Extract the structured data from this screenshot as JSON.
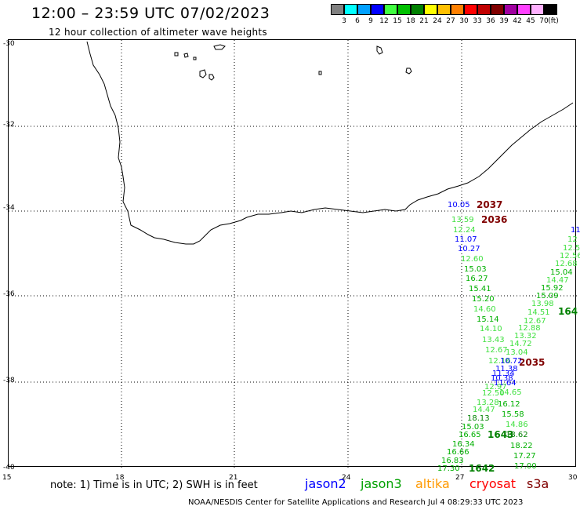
{
  "header": {
    "title": "12:00 – 23:59 UTC 07/02/2023",
    "subtitle": "12 hour collection of altimeter wave heights"
  },
  "legend": {
    "unit": "(ft)",
    "cells": [
      {
        "color": "#808080",
        "label": "3"
      },
      {
        "color": "#00ffff",
        "label": "6"
      },
      {
        "color": "#00a0ff",
        "label": "9"
      },
      {
        "color": "#0000ff",
        "label": "12"
      },
      {
        "color": "#40ff40",
        "label": "15"
      },
      {
        "color": "#00c000",
        "label": "18"
      },
      {
        "color": "#008000",
        "label": "21"
      },
      {
        "color": "#ffff00",
        "label": "24"
      },
      {
        "color": "#ffc000",
        "label": "27"
      },
      {
        "color": "#ff8000",
        "label": "30"
      },
      {
        "color": "#ff0000",
        "label": "33"
      },
      {
        "color": "#c00000",
        "label": "36"
      },
      {
        "color": "#800000",
        "label": "39"
      },
      {
        "color": "#a000a0",
        "label": "42"
      },
      {
        "color": "#ff40ff",
        "label": "45"
      },
      {
        "color": "#ffb0ff",
        "label": "70"
      },
      {
        "color": "#000000",
        "label": ""
      }
    ]
  },
  "axes": {
    "lat_labels": [
      "-30",
      "-32",
      "-34",
      "-36",
      "-38",
      "-40"
    ],
    "lon_labels": [
      "15",
      "18",
      "21",
      "24",
      "27",
      "30"
    ]
  },
  "observations": [
    {
      "text": "10.05",
      "c": "#0000ff"
    },
    {
      "text": "2037",
      "c": "#800000",
      "big": true
    },
    {
      "text": "13.59",
      "c": "#40e040"
    },
    {
      "text": "2036",
      "c": "#800000",
      "big": true
    },
    {
      "text": "12.24",
      "c": "#40e040"
    },
    {
      "text": "11.07",
      "c": "#0000ff"
    },
    {
      "text": "10.27",
      "c": "#0000ff"
    },
    {
      "text": "12.60",
      "c": "#40e040"
    },
    {
      "text": "15.03",
      "c": "#00b000"
    },
    {
      "text": "16.27",
      "c": "#00b000"
    },
    {
      "text": "15.41",
      "c": "#00b000"
    },
    {
      "text": "15.20",
      "c": "#00b000"
    },
    {
      "text": "14.60",
      "c": "#40e040"
    },
    {
      "text": "15.14",
      "c": "#00b000"
    },
    {
      "text": "14.10",
      "c": "#40e040"
    },
    {
      "text": "13.43",
      "c": "#40e040"
    },
    {
      "text": "12.67",
      "c": "#40e040"
    },
    {
      "text": "12.16",
      "c": "#40e040"
    },
    {
      "text": "10.72",
      "c": "#0000ff"
    },
    {
      "text": "11.38",
      "c": "#0000ff"
    },
    {
      "text": "11.34",
      "c": "#0000ff"
    },
    {
      "text": "10.38",
      "c": "#0000ff"
    },
    {
      "text": "11.64",
      "c": "#0000ff"
    },
    {
      "text": "12.97",
      "c": "#40e040"
    },
    {
      "text": "12.50",
      "c": "#40e040"
    },
    {
      "text": "13.28",
      "c": "#40e040"
    },
    {
      "text": "14.47",
      "c": "#40e040"
    },
    {
      "text": "18.13",
      "c": "#008000"
    },
    {
      "text": "15.03",
      "c": "#00b000"
    },
    {
      "text": "16.65",
      "c": "#00b000"
    },
    {
      "text": "16.34",
      "c": "#00b000"
    },
    {
      "text": "16.66",
      "c": "#00b000"
    },
    {
      "text": "16.83",
      "c": "#00b000"
    },
    {
      "text": "17.30",
      "c": "#00b000"
    },
    {
      "text": "1642",
      "c": "#008000",
      "big": true
    },
    {
      "text": "1643",
      "c": "#008000",
      "big": true
    },
    {
      "text": "2035",
      "c": "#800000",
      "big": true
    },
    {
      "text": "11",
      "c": "#0000ff"
    },
    {
      "text": "12",
      "c": "#40e040"
    },
    {
      "text": "12.5",
      "c": "#40e040"
    },
    {
      "text": "12.56",
      "c": "#40e040"
    },
    {
      "text": "12.68",
      "c": "#40e040"
    },
    {
      "text": "15.04",
      "c": "#00b000"
    },
    {
      "text": "14.47",
      "c": "#40e040"
    },
    {
      "text": "15.92",
      "c": "#00b000"
    },
    {
      "text": "15.09",
      "c": "#00b000"
    },
    {
      "text": "13.98",
      "c": "#40e040"
    },
    {
      "text": "14.51",
      "c": "#40e040"
    },
    {
      "text": "164",
      "c": "#008000",
      "big": true
    },
    {
      "text": "12.67",
      "c": "#40e040"
    },
    {
      "text": "12.88",
      "c": "#40e040"
    },
    {
      "text": "13.32",
      "c": "#40e040"
    },
    {
      "text": "14.72",
      "c": "#40e040"
    },
    {
      "text": "13.04",
      "c": "#40e040"
    },
    {
      "text": "14.65",
      "c": "#40e040"
    },
    {
      "text": "16.12",
      "c": "#00b000"
    },
    {
      "text": "15.58",
      "c": "#00b000"
    },
    {
      "text": "14.86",
      "c": "#40e040"
    },
    {
      "text": "18.62",
      "c": "#008000"
    },
    {
      "text": "18.22",
      "c": "#00b000"
    },
    {
      "text": "17.27",
      "c": "#00b000"
    },
    {
      "text": "17.00",
      "c": "#00b000"
    }
  ],
  "footer": {
    "note": "note: 1) Time is in UTC; 2) SWH is in feet",
    "satellites": [
      {
        "name": "jason2",
        "color": "#0000ff"
      },
      {
        "name": "jason3",
        "color": "#00a000"
      },
      {
        "name": "altika",
        "color": "#ff9900"
      },
      {
        "name": "cryosat",
        "color": "#ff0000"
      },
      {
        "name": "s3a",
        "color": "#800000"
      }
    ],
    "credit": "NOAA/NESDIS Center for Satellite Applications and Research   Jul  4 08:29:33 UTC 2023"
  }
}
